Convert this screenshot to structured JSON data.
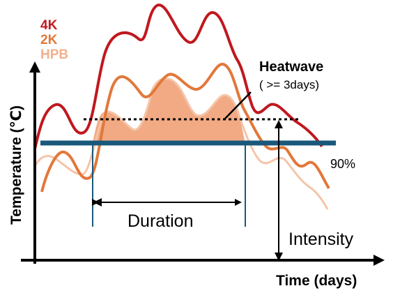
{
  "legend": {
    "items": [
      {
        "label": "4K",
        "color": "#c0181e"
      },
      {
        "label": "2K",
        "color": "#e2783a"
      },
      {
        "label": "HPB",
        "color": "#f1b08e"
      }
    ]
  },
  "annotation": {
    "title": "Heatwave",
    "subtitle": "( >= 3days)",
    "threshold_label": "90%",
    "duration_label": "Duration",
    "intensity_label": "Intensity"
  },
  "axes": {
    "y_label": "Temperature (℃)",
    "x_label": "Time (days)"
  },
  "colors": {
    "threshold": "#19587a",
    "axis": "#000000",
    "fill": "#f0a57d",
    "text": "#000000"
  }
}
